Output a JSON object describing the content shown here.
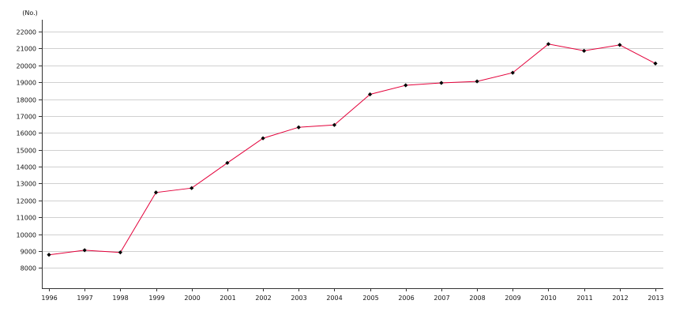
{
  "chart_data": {
    "type": "line",
    "title": "",
    "xlabel": "",
    "ylabel": "(No.)",
    "x": [
      "1996",
      "1997",
      "1998",
      "1999",
      "2000",
      "2001",
      "2002",
      "2003",
      "2004",
      "2005",
      "2006",
      "2007",
      "2008",
      "2009",
      "2010",
      "2011",
      "2012",
      "2013"
    ],
    "series": [
      {
        "values": [
          8780,
          9050,
          8920,
          12470,
          12730,
          14220,
          15680,
          16330,
          16470,
          18280,
          18820,
          18960,
          19050,
          19560,
          21260,
          20860,
          21210,
          20110
        ]
      }
    ],
    "yticks": [
      8000,
      9000,
      10000,
      11000,
      12000,
      13000,
      14000,
      15000,
      16000,
      17000,
      18000,
      19000,
      20000,
      21000,
      22000
    ],
    "ylim": [
      6800,
      22700
    ],
    "grid": true,
    "line_color": "#e3003a",
    "marker_color": "#000000"
  }
}
